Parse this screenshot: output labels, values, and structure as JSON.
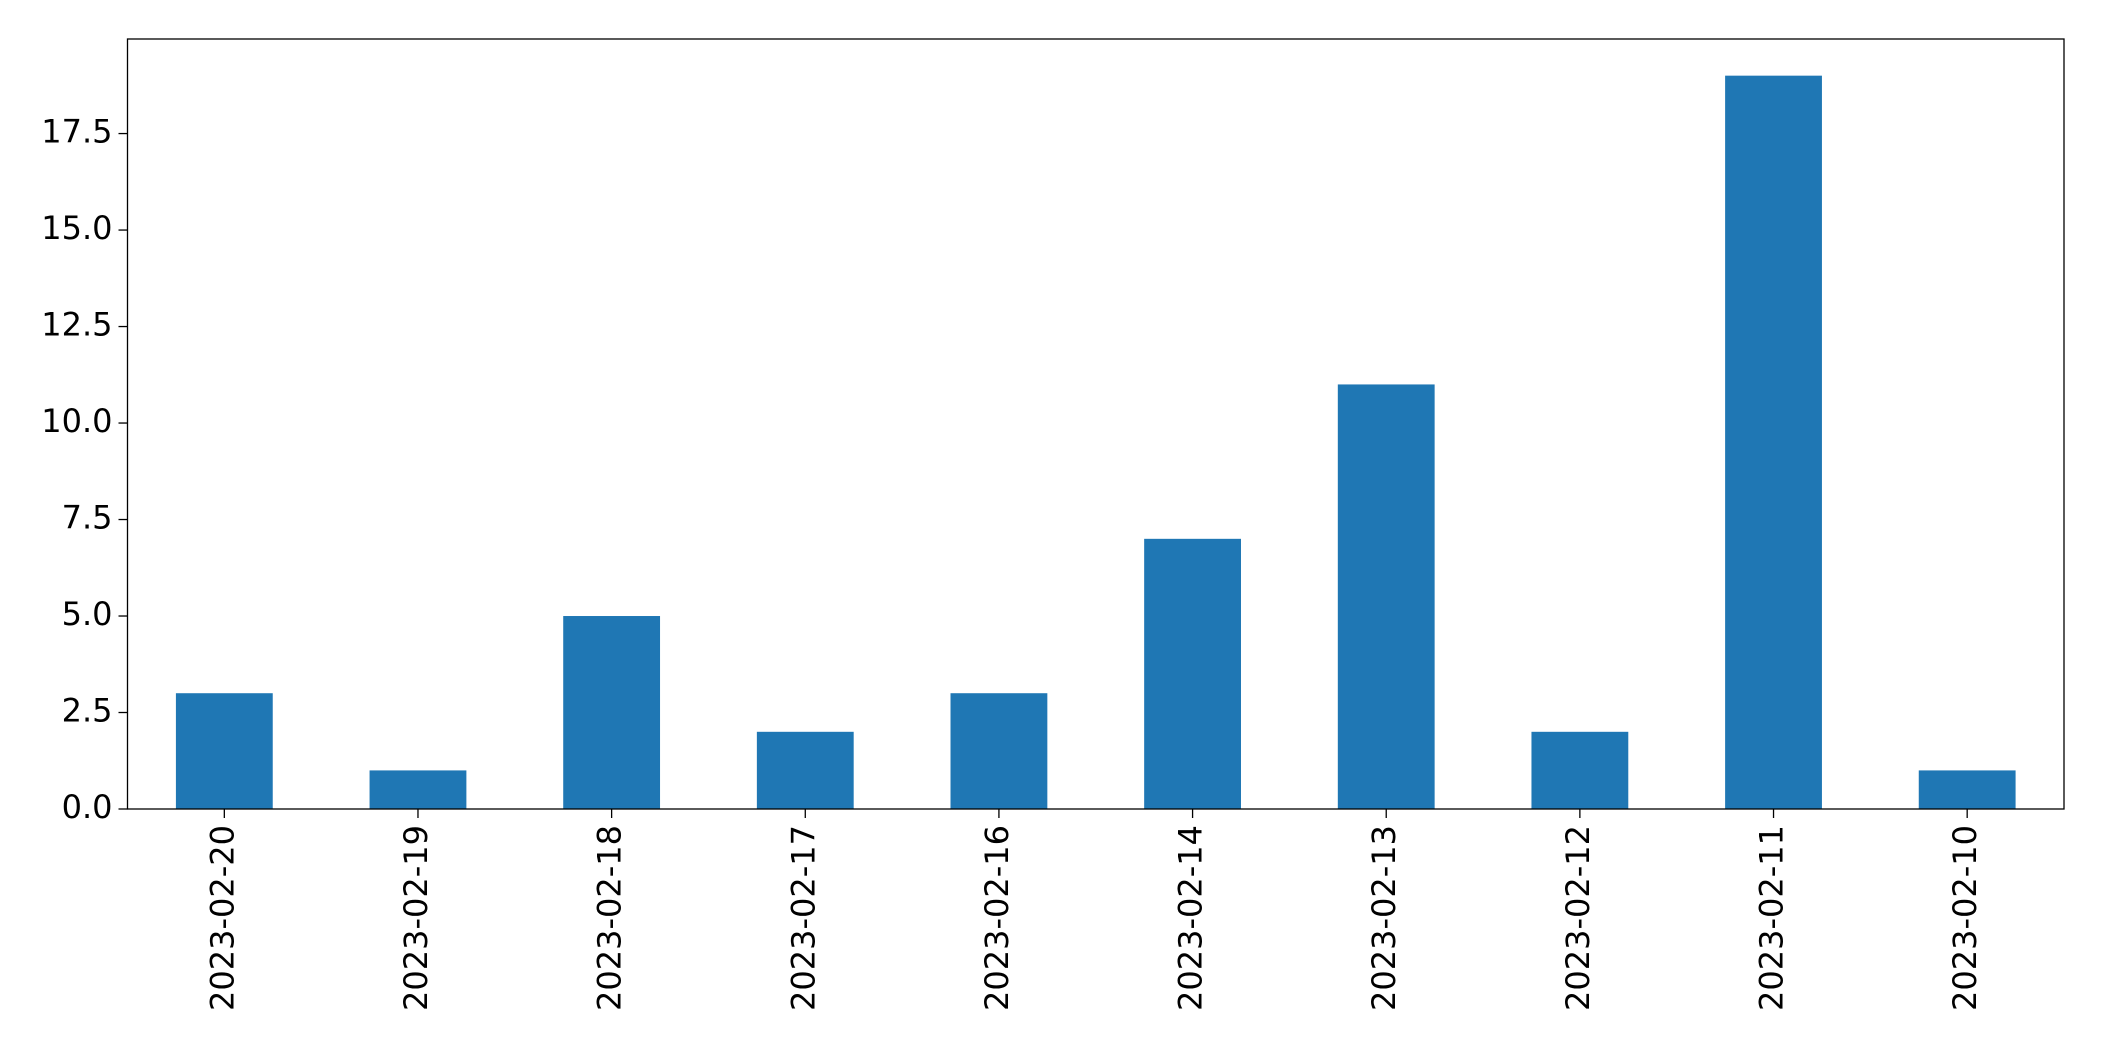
{
  "chart_data": {
    "type": "bar",
    "categories": [
      "2023-02-20",
      "2023-02-19",
      "2023-02-18",
      "2023-02-17",
      "2023-02-16",
      "2023-02-14",
      "2023-02-13",
      "2023-02-12",
      "2023-02-11",
      "2023-02-10"
    ],
    "values": [
      3,
      1,
      5,
      2,
      3,
      7,
      11,
      2,
      19,
      1
    ],
    "color": "#1f77b4",
    "ylim": [
      0,
      19.95
    ],
    "yticks": [
      {
        "value": 0,
        "label": "0.0"
      },
      2.5,
      {
        "value": 5,
        "label": "5.0"
      },
      7.5,
      {
        "value": 10,
        "label": "10.0"
      },
      12.5,
      {
        "value": 15,
        "label": "15.0"
      },
      17.5
    ],
    "grid": false
  }
}
